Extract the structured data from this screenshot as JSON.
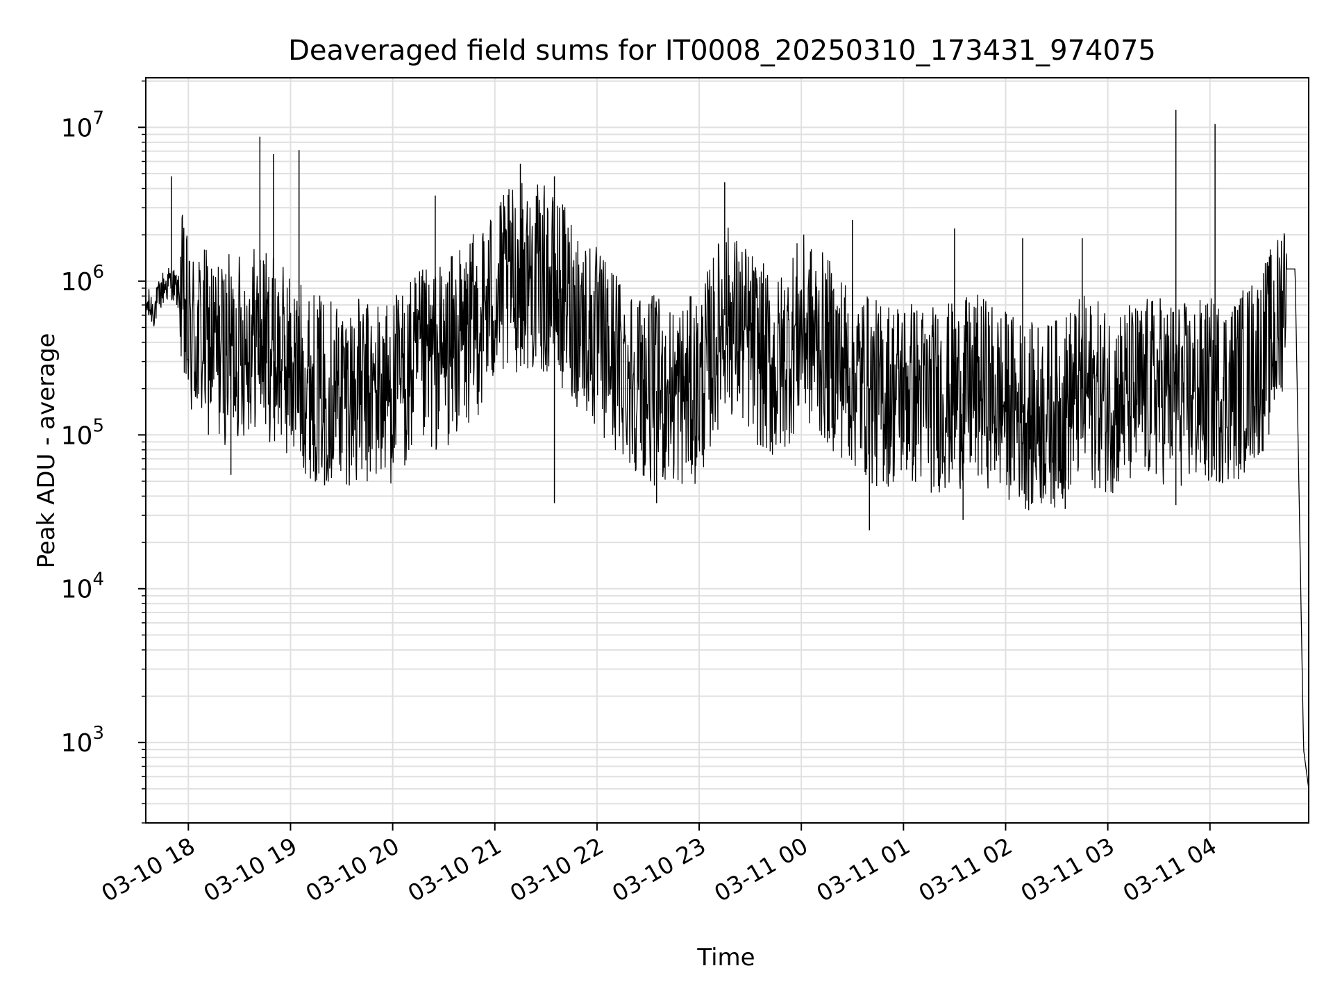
{
  "chart_data": {
    "type": "line",
    "title": "Deaveraged field sums for IT0008_20250310_173431_974075",
    "xlabel": "Time",
    "ylabel": "Peak ADU - average",
    "yscale": "log",
    "ylim": [
      300,
      21000000
    ],
    "xlim": [
      "2025-03-10 17:35",
      "2025-03-11 04:58"
    ],
    "grid": true,
    "x_ticks": [
      {
        "label": "03-10 18",
        "t": "2025-03-10 18:00"
      },
      {
        "label": "03-10 19",
        "t": "2025-03-10 19:00"
      },
      {
        "label": "03-10 20",
        "t": "2025-03-10 20:00"
      },
      {
        "label": "03-10 21",
        "t": "2025-03-10 21:00"
      },
      {
        "label": "03-10 22",
        "t": "2025-03-10 22:00"
      },
      {
        "label": "03-10 23",
        "t": "2025-03-10 23:00"
      },
      {
        "label": "03-11 00",
        "t": "2025-03-11 00:00"
      },
      {
        "label": "03-11 01",
        "t": "2025-03-11 01:00"
      },
      {
        "label": "03-11 02",
        "t": "2025-03-11 02:00"
      },
      {
        "label": "03-11 03",
        "t": "2025-03-11 03:00"
      },
      {
        "label": "03-11 04",
        "t": "2025-03-11 04:00"
      }
    ],
    "y_ticks": [
      {
        "base": "10",
        "exp": "3",
        "value": 1000
      },
      {
        "base": "10",
        "exp": "4",
        "value": 10000
      },
      {
        "base": "10",
        "exp": "5",
        "value": 100000
      },
      {
        "base": "10",
        "exp": "6",
        "value": 1000000
      },
      {
        "base": "10",
        "exp": "7",
        "value": 10000000
      }
    ],
    "line_color": "#000000",
    "grid_color": "#e0e0e0",
    "series": [
      {
        "x": [
          "2025-03-10 17:35",
          "2025-03-10 17:40",
          "2025-03-10 17:45",
          "2025-03-10 17:50",
          "2025-03-10 17:55",
          "2025-03-10 18:00",
          "2025-03-10 18:10",
          "2025-03-10 18:20",
          "2025-03-10 18:30",
          "2025-03-10 18:40",
          "2025-03-10 18:50",
          "2025-03-10 19:00",
          "2025-03-10 19:15",
          "2025-03-10 19:30",
          "2025-03-10 19:45",
          "2025-03-10 20:00",
          "2025-03-10 20:15",
          "2025-03-10 20:30",
          "2025-03-10 20:45",
          "2025-03-10 21:00",
          "2025-03-10 21:15",
          "2025-03-10 21:30",
          "2025-03-10 21:45",
          "2025-03-10 22:00",
          "2025-03-10 22:15",
          "2025-03-10 22:30",
          "2025-03-10 22:45",
          "2025-03-10 23:00",
          "2025-03-10 23:15",
          "2025-03-10 23:30",
          "2025-03-10 23:45",
          "2025-03-11 00:00",
          "2025-03-11 00:15",
          "2025-03-11 00:30",
          "2025-03-11 00:45",
          "2025-03-11 01:00",
          "2025-03-11 01:15",
          "2025-03-11 01:30",
          "2025-03-11 01:45",
          "2025-03-11 02:00",
          "2025-03-11 02:15",
          "2025-03-11 02:30",
          "2025-03-11 02:45",
          "2025-03-11 03:00",
          "2025-03-11 03:15",
          "2025-03-11 03:30",
          "2025-03-11 03:45",
          "2025-03-11 04:00",
          "2025-03-11 04:15",
          "2025-03-11 04:30",
          "2025-03-11 04:40",
          "2025-03-11 04:45",
          "2025-03-11 04:50",
          "2025-03-11 04:55",
          "2025-03-11 04:58"
        ],
        "values": [
          700000,
          650000,
          900000,
          1000000,
          800000,
          450000,
          400000,
          350000,
          380000,
          450000,
          350000,
          280000,
          200000,
          200000,
          180000,
          200000,
          280000,
          330000,
          450000,
          800000,
          1100000,
          1000000,
          700000,
          400000,
          280000,
          200000,
          180000,
          200000,
          600000,
          400000,
          250000,
          500000,
          350000,
          250000,
          180000,
          200000,
          170000,
          180000,
          200000,
          160000,
          130000,
          140000,
          200000,
          170000,
          180000,
          200000,
          180000,
          190000,
          200000,
          300000,
          500000,
          1200000,
          1200000,
          900,
          500
        ]
      }
    ],
    "spikes": [
      {
        "t": "2025-03-10 17:50",
        "value": 4800000
      },
      {
        "t": "2025-03-10 18:42",
        "value": 8700000
      },
      {
        "t": "2025-03-10 18:50",
        "value": 6700000
      },
      {
        "t": "2025-03-10 19:05",
        "value": 7100000
      },
      {
        "t": "2025-03-10 20:25",
        "value": 3600000
      },
      {
        "t": "2025-03-10 21:15",
        "value": 5800000
      },
      {
        "t": "2025-03-10 21:35",
        "value": 4800000
      },
      {
        "t": "2025-03-10 23:15",
        "value": 4400000
      },
      {
        "t": "2025-03-11 00:30",
        "value": 2500000
      },
      {
        "t": "2025-03-11 01:30",
        "value": 2200000
      },
      {
        "t": "2025-03-11 02:10",
        "value": 1900000
      },
      {
        "t": "2025-03-11 02:45",
        "value": 1900000
      },
      {
        "t": "2025-03-11 03:40",
        "value": 13000000
      },
      {
        "t": "2025-03-11 04:03",
        "value": 10500000
      }
    ],
    "dips": [
      {
        "t": "2025-03-10 18:25",
        "value": 55000
      },
      {
        "t": "2025-03-10 19:20",
        "value": 47000
      },
      {
        "t": "2025-03-10 21:35",
        "value": 36000
      },
      {
        "t": "2025-03-10 22:35",
        "value": 36000
      },
      {
        "t": "2025-03-11 00:40",
        "value": 24000
      },
      {
        "t": "2025-03-11 01:35",
        "value": 28000
      },
      {
        "t": "2025-03-11 02:35",
        "value": 33000
      },
      {
        "t": "2025-03-11 03:40",
        "value": 35000
      }
    ]
  }
}
